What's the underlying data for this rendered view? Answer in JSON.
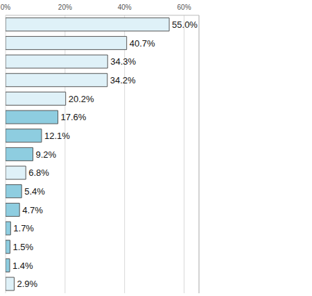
{
  "chart_data": {
    "type": "bar",
    "orientation": "horizontal",
    "categories": [
      null,
      null,
      null,
      null,
      null,
      null,
      null,
      null,
      null,
      null,
      null,
      null,
      null,
      null,
      null
    ],
    "values": [
      55.0,
      40.7,
      34.3,
      34.2,
      20.2,
      17.6,
      12.1,
      9.2,
      6.8,
      5.4,
      4.7,
      1.7,
      1.5,
      1.4,
      2.9
    ],
    "value_labels": [
      "55.0%",
      "40.7%",
      "34.3%",
      "34.2%",
      "20.2%",
      "17.6%",
      "12.1%",
      "9.2%",
      "6.8%",
      "5.4%",
      "4.7%",
      "1.7%",
      "1.5%",
      "1.4%",
      "2.9%"
    ],
    "colors": [
      "#dff1f8",
      "#dff1f8",
      "#dff1f8",
      "#dff1f8",
      "#dff1f8",
      "#8ecde0",
      "#8ecde0",
      "#8ecde0",
      "#dff1f8",
      "#8ecde0",
      "#8ecde0",
      "#8ecde0",
      "#8ecde0",
      "#8ecde0",
      "#dff1f8"
    ],
    "xlim": [
      0,
      65
    ],
    "xticks": [
      {
        "value": 0,
        "label": "0%"
      },
      {
        "value": 20,
        "label": "20%"
      },
      {
        "value": 40,
        "label": "40%"
      },
      {
        "value": 60,
        "label": "60%"
      }
    ],
    "grid": true,
    "data_labels": true,
    "tick_labels": "x"
  }
}
